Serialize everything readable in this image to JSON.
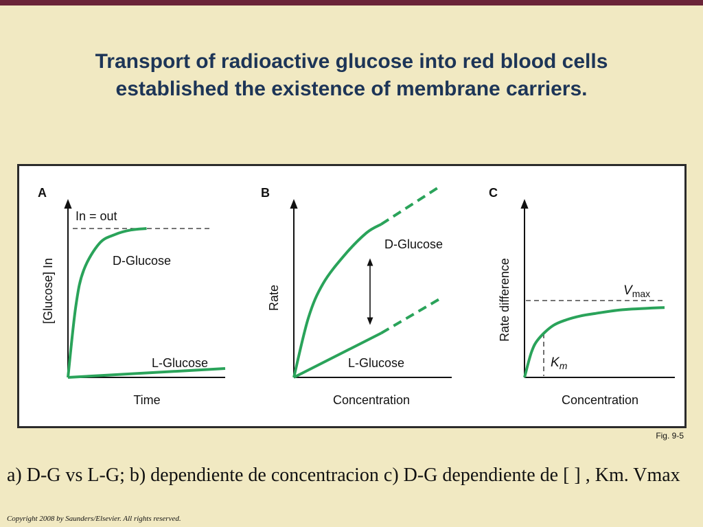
{
  "slide": {
    "title_line1": "Transport of radioactive glucose into red blood cells",
    "title_line2": "established the existence of membrane carriers.",
    "fig_label": "Fig. 9-5",
    "caption": "a) D-G vs L-G; b) dependiente de concentracion c) D-G dependiente de [ ] , Km. Vmax",
    "copyright": "Copyright 2008 by Saunders/Elsevier. All rights reserved.",
    "colors": {
      "background": "#f1e9c2",
      "top_bar": "#6b2438",
      "title": "#1d3557",
      "curve": "#2aa35a",
      "axis": "#111111"
    }
  },
  "chart_data": [
    {
      "panel": "A",
      "type": "line",
      "xlabel": "Time",
      "ylabel": "[Glucose] In",
      "reference_line": {
        "label": "In = out",
        "style": "dashed",
        "y": 1.0
      },
      "series": [
        {
          "name": "D-Glucose",
          "x": [
            0,
            0.05,
            0.1,
            0.2,
            0.3,
            0.4,
            0.5
          ],
          "y": [
            0,
            0.48,
            0.72,
            0.9,
            0.96,
            0.99,
            1.0
          ]
        },
        {
          "name": "L-Glucose",
          "x": [
            0,
            1.0
          ],
          "y": [
            0,
            0.06
          ]
        }
      ]
    },
    {
      "panel": "B",
      "type": "line",
      "xlabel": "Concentration",
      "ylabel": "Rate",
      "annotation": "double-headed arrow between curves",
      "series": [
        {
          "name": "D-Glucose",
          "x": [
            0,
            0.1,
            0.2,
            0.35,
            0.5,
            0.6
          ],
          "y": [
            0,
            0.35,
            0.55,
            0.72,
            0.85,
            0.9
          ],
          "extrapolated_x": [
            0.6,
            1.0
          ],
          "extrapolated_y": [
            0.9,
            1.12
          ]
        },
        {
          "name": "L-Glucose",
          "x": [
            0,
            0.6
          ],
          "y": [
            0,
            0.26
          ],
          "extrapolated_x": [
            0.6,
            1.0
          ],
          "extrapolated_y": [
            0.26,
            0.46
          ]
        }
      ]
    },
    {
      "panel": "C",
      "type": "line",
      "xlabel": "Concentration",
      "ylabel": "Rate difference",
      "vmax_label": "V",
      "vmax_subscript": "max",
      "km_label": "K",
      "km_subscript": "m",
      "series": [
        {
          "name": "",
          "x": [
            0,
            0.05,
            0.1,
            0.2,
            0.3,
            0.4,
            0.5,
            0.7,
            1.0
          ],
          "y": [
            0,
            0.33,
            0.5,
            0.67,
            0.75,
            0.8,
            0.83,
            0.88,
            0.91
          ]
        }
      ]
    }
  ]
}
